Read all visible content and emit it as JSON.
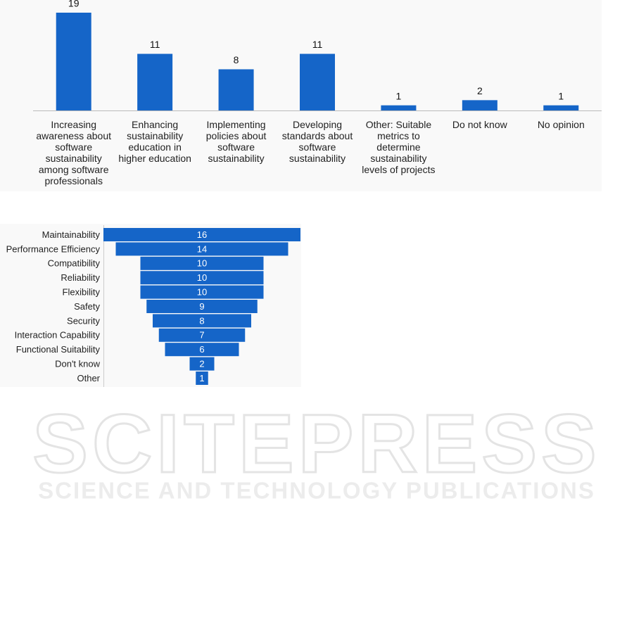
{
  "chart_data": [
    {
      "type": "bar",
      "color": "#1565c8",
      "categories": [
        "Increasing awareness about software sustainability among software professionals",
        "Enhancing sustainability education in higher education",
        "Implementing policies about software sustainability",
        "Developing standards about software sustainability",
        "Other: Suitable metrics to determine sustainability levels of projects",
        "Do not know",
        "No opinion"
      ],
      "values": [
        19,
        11,
        8,
        11,
        1,
        2,
        1
      ]
    },
    {
      "type": "funnel",
      "color": "#1565c8",
      "categories": [
        "Maintainability",
        "Performance Efficiency",
        "Compatibility",
        "Reliability",
        "Flexibility",
        "Safety",
        "Security",
        "Interaction Capability",
        "Functional Suitability",
        "Don't know",
        "Other"
      ],
      "values": [
        16,
        14,
        10,
        10,
        10,
        9,
        8,
        7,
        6,
        2,
        1
      ]
    }
  ],
  "watermark": {
    "title": "SCITEPRESS",
    "subtitle": "SCIENCE AND TECHNOLOGY PUBLICATIONS"
  }
}
